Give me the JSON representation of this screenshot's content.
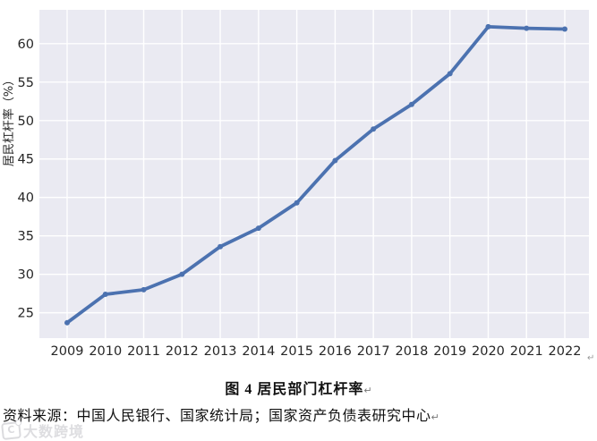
{
  "chart_data": {
    "type": "line",
    "title": "图 4 居民部门杠杆率",
    "xlabel": "",
    "ylabel": "居民杠杆率（%）",
    "x": [
      2009,
      2010,
      2011,
      2012,
      2013,
      2014,
      2015,
      2016,
      2017,
      2018,
      2019,
      2020,
      2021,
      2022
    ],
    "series": [
      {
        "name": "居民部门杠杆率",
        "values": [
          23.7,
          27.4,
          28.0,
          30.0,
          33.6,
          36.0,
          39.3,
          44.8,
          48.9,
          52.1,
          56.1,
          62.2,
          62.0,
          61.9
        ]
      }
    ],
    "ylim": [
      21.7,
      64.4
    ],
    "yticks": [
      25,
      30,
      35,
      40,
      45,
      50,
      55,
      60
    ],
    "grid": true,
    "legend": "none",
    "colors": {
      "line": "#4c72b0",
      "plot_background": "#eaeaf2",
      "grid": "#ffffff",
      "tick_text": "#262626"
    }
  },
  "caption": {
    "text": "图 4 居民部门杠杆率",
    "return_mark": "↵"
  },
  "source": {
    "text": "资料来源：中国人民银行、国家统计局；国家资产负债表研究中心",
    "return_mark": "↵"
  },
  "watermark": {
    "logo": "C",
    "text": "大数跨境"
  },
  "stray_mark": "↵"
}
